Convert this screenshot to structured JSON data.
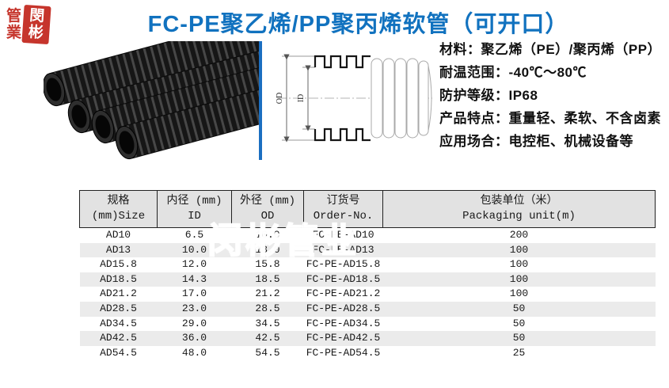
{
  "page": {
    "title": "FC-PE聚乙烯/PP聚丙烯软管（可开口）",
    "title_color": "#1172bf",
    "accent_blue": "#1b6fc1"
  },
  "logo": {
    "left_top": "管",
    "left_bottom": "業",
    "right_top": "閔",
    "right_bottom": "彬",
    "seal_color": "#c6352c"
  },
  "drawing": {
    "od_label": "OD",
    "id_label": "ID"
  },
  "specs": {
    "lines": [
      "材料：聚乙烯（PE）/聚丙烯（PP）",
      "耐温范围：-40℃～80℃",
      "防护等级：IP68",
      "产品特点：重量轻、柔软、不含卤素",
      "应用场合：电控柜、机械设备等"
    ]
  },
  "watermark_text": "闵彬管业",
  "table": {
    "headers": [
      [
        "规格 (mm)Size"
      ],
      [
        "内径 (mm) ID"
      ],
      [
        "外径 (mm) OD"
      ],
      [
        "订货号",
        "Order-No."
      ],
      [
        "包装单位（米）",
        "Packaging unit(m)"
      ]
    ],
    "rows": [
      [
        "AD10",
        "6.5",
        "10.0",
        "FC-PE-AD10",
        "200"
      ],
      [
        "AD13",
        "10.0",
        "13.0",
        "FC-PE-AD13",
        "100"
      ],
      [
        "AD15.8",
        "12.0",
        "15.8",
        "FC-PE-AD15.8",
        "100"
      ],
      [
        "AD18.5",
        "14.3",
        "18.5",
        "FC-PE-AD18.5",
        "100"
      ],
      [
        "AD21.2",
        "17.0",
        "21.2",
        "FC-PE-AD21.2",
        "100"
      ],
      [
        "AD28.5",
        "23.0",
        "28.5",
        "FC-PE-AD28.5",
        "50"
      ],
      [
        "AD34.5",
        "29.0",
        "34.5",
        "FC-PE-AD34.5",
        "50"
      ],
      [
        "AD42.5",
        "36.0",
        "42.5",
        "FC-PE-AD42.5",
        "50"
      ],
      [
        "AD54.5",
        "48.0",
        "54.5",
        "FC-PE-AD54.5",
        "25"
      ]
    ]
  }
}
